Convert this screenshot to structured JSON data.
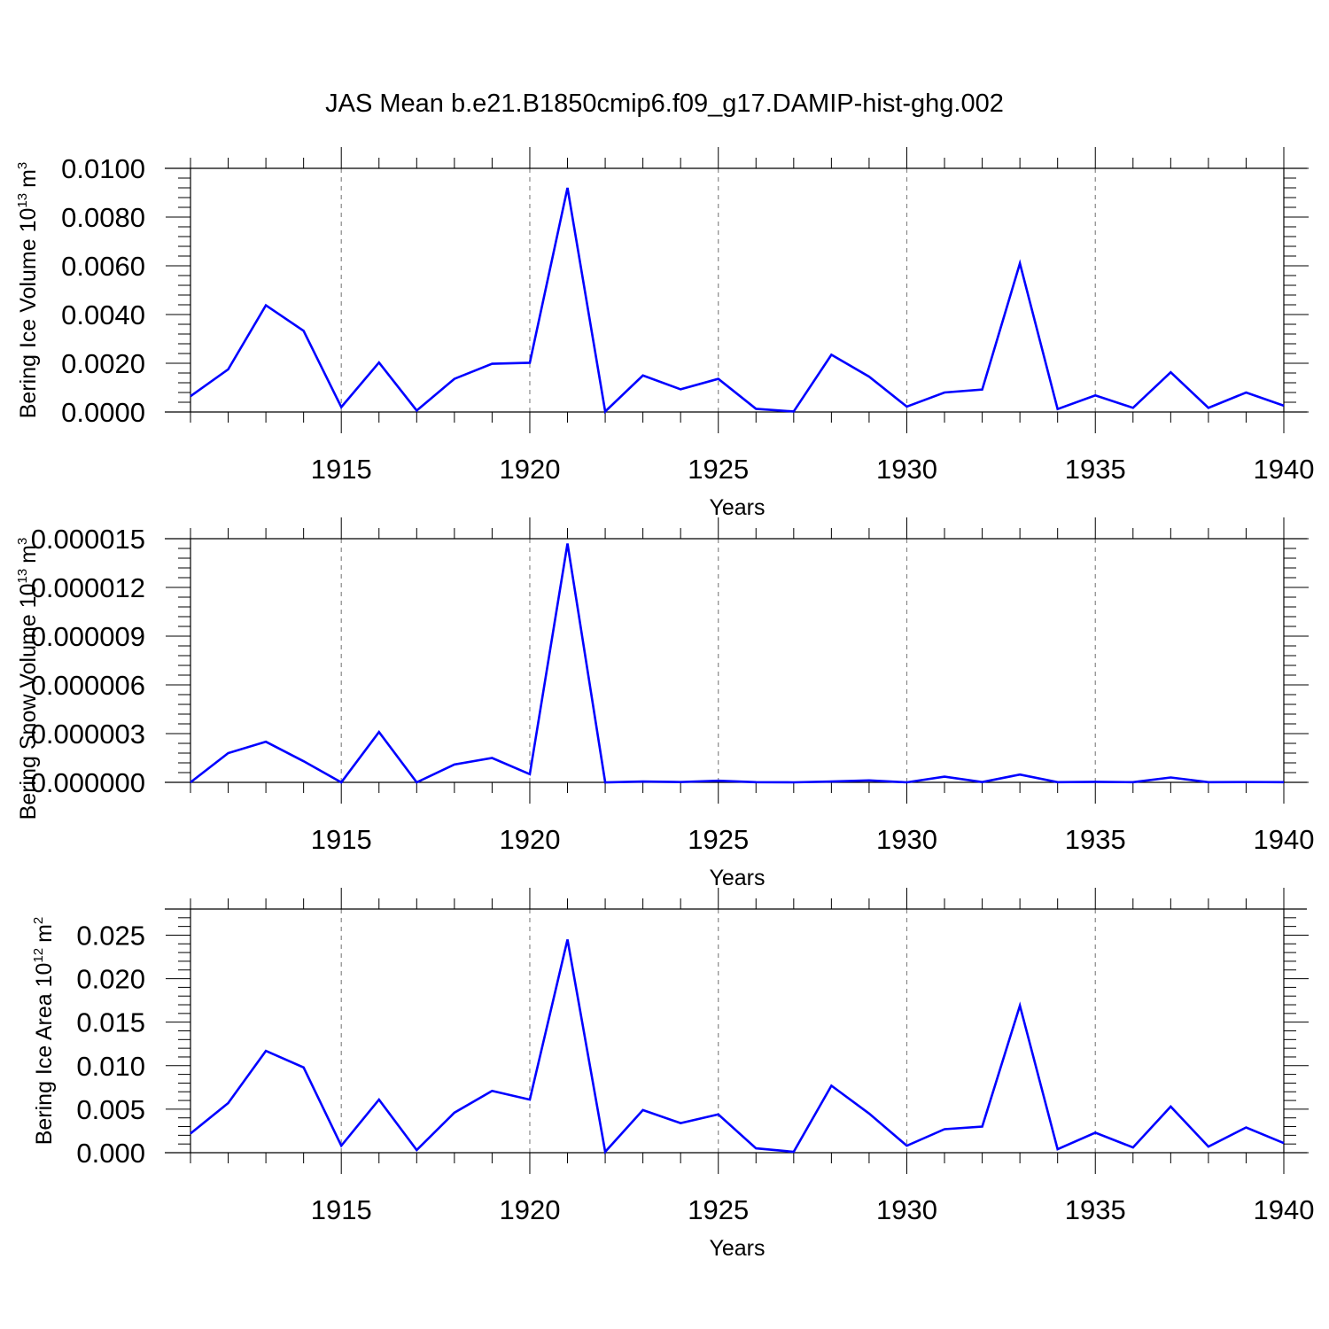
{
  "chart_data": [
    {
      "type": "line",
      "title": "JAS Mean b.e21.B1850cmip6.f09_g17.DAMIP-hist-ghg.002",
      "xlabel": "Years",
      "ylabel": "Bering Ice Volume 10",
      "ylabel_exponent": "13",
      "ylabel_unit": "m",
      "ylabel_unit_exponent": "3",
      "xlim": [
        1911,
        1940
      ],
      "ylim": [
        0,
        0.01
      ],
      "x_ticks": [
        1915,
        1920,
        1925,
        1930,
        1935,
        1940
      ],
      "x_tick_labels": [
        "1915",
        "1920",
        "1925",
        "1930",
        "1935",
        "1940"
      ],
      "y_ticks": [
        0,
        0.002,
        0.004,
        0.006,
        0.008,
        0.01
      ],
      "y_tick_labels": [
        "0.0000",
        "0.0020",
        "0.0040",
        "0.0060",
        "0.0080",
        "0.0100"
      ],
      "grid": "x-dashed",
      "color": "#0000ff",
      "series": [
        {
          "name": "Bering Ice Volume",
          "x": [
            1911,
            1912,
            1913,
            1914,
            1915,
            1916,
            1917,
            1918,
            1919,
            1920,
            1921,
            1922,
            1923,
            1924,
            1925,
            1926,
            1927,
            1928,
            1929,
            1930,
            1931,
            1932,
            1933,
            1934,
            1935,
            1936,
            1937,
            1938,
            1939,
            1940
          ],
          "values": [
            0.00065,
            0.00175,
            0.00438,
            0.00333,
            0.0002,
            0.00203,
            6e-05,
            0.00136,
            0.00198,
            0.00202,
            0.0092,
            2e-05,
            0.0015,
            0.00093,
            0.00136,
            0.00013,
            2e-05,
            0.00235,
            0.00145,
            0.00022,
            0.0008,
            0.00092,
            0.0061,
            0.00012,
            0.00068,
            0.00017,
            0.00163,
            0.00017,
            0.0008,
            0.00026
          ]
        }
      ]
    },
    {
      "type": "line",
      "xlabel": "Years",
      "ylabel": "Bering Snow Volume 10",
      "ylabel_exponent": "13",
      "ylabel_unit": "m",
      "ylabel_unit_exponent": "3",
      "xlim": [
        1911,
        1940
      ],
      "ylim": [
        0,
        1.5e-05
      ],
      "x_ticks": [
        1915,
        1920,
        1925,
        1930,
        1935,
        1940
      ],
      "x_tick_labels": [
        "1915",
        "1920",
        "1925",
        "1930",
        "1935",
        "1940"
      ],
      "y_ticks": [
        0,
        3e-06,
        6e-06,
        9e-06,
        1.2e-05,
        1.5e-05
      ],
      "y_tick_labels": [
        "0.000000",
        "0.000003",
        "0.000006",
        "0.000009",
        "0.000012",
        "0.000015"
      ],
      "grid": "x-dashed",
      "color": "#0000ff",
      "series": [
        {
          "name": "Bering Snow Volume",
          "x": [
            1911,
            1912,
            1913,
            1914,
            1915,
            1916,
            1917,
            1918,
            1919,
            1920,
            1921,
            1922,
            1923,
            1924,
            1925,
            1926,
            1927,
            1928,
            1929,
            1930,
            1931,
            1932,
            1933,
            1934,
            1935,
            1936,
            1937,
            1938,
            1939,
            1940
          ],
          "values": [
            0.0,
            1.8e-06,
            2.5e-06,
            1.3e-06,
            0.0,
            3.1e-06,
            0.0,
            1.1e-06,
            1.5e-06,
            5e-07,
            1.47e-05,
            0.0,
            5e-08,
            2e-08,
            1e-07,
            1e-08,
            0.0,
            5e-08,
            1.2e-07,
            0.0,
            3.5e-07,
            2e-08,
            4.8e-07,
            1e-08,
            3e-08,
            1e-08,
            3e-07,
            1e-08,
            2e-08,
            1e-08
          ]
        }
      ]
    },
    {
      "type": "line",
      "xlabel": "Years",
      "ylabel": "Bering Ice Area 10",
      "ylabel_exponent": "12",
      "ylabel_unit": "m",
      "ylabel_unit_exponent": "2",
      "xlim": [
        1911,
        1940
      ],
      "ylim": [
        0,
        0.028
      ],
      "x_ticks": [
        1915,
        1920,
        1925,
        1930,
        1935,
        1940
      ],
      "x_tick_labels": [
        "1915",
        "1920",
        "1925",
        "1930",
        "1935",
        "1940"
      ],
      "y_ticks": [
        0,
        0.005,
        0.01,
        0.015,
        0.02,
        0.025
      ],
      "y_tick_labels": [
        "0.000",
        "0.005",
        "0.010",
        "0.015",
        "0.020",
        "0.025"
      ],
      "grid": "x-dashed",
      "color": "#0000ff",
      "series": [
        {
          "name": "Bering Ice Area",
          "x": [
            1911,
            1912,
            1913,
            1914,
            1915,
            1916,
            1917,
            1918,
            1919,
            1920,
            1921,
            1922,
            1923,
            1924,
            1925,
            1926,
            1927,
            1928,
            1929,
            1930,
            1931,
            1932,
            1933,
            1934,
            1935,
            1936,
            1937,
            1938,
            1939,
            1940
          ],
          "values": [
            0.0022,
            0.0057,
            0.0117,
            0.0098,
            0.0008,
            0.0061,
            0.0003,
            0.0046,
            0.0071,
            0.0061,
            0.0245,
            0.0001,
            0.0049,
            0.0034,
            0.0044,
            0.0005,
            0.0001,
            0.0077,
            0.0045,
            0.0008,
            0.0027,
            0.003,
            0.0169,
            0.0004,
            0.0023,
            0.0006,
            0.0053,
            0.0007,
            0.0029,
            0.0011
          ]
        }
      ]
    }
  ]
}
